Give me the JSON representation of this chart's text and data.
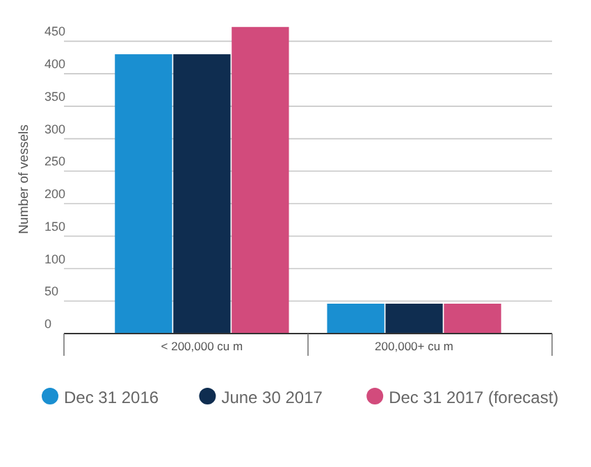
{
  "chart_data": {
    "type": "bar",
    "ylabel": "Number of vessels",
    "categories": [
      "< 200,000 cu m",
      "200,000+ cu m"
    ],
    "series": [
      {
        "name": "Dec 31 2016",
        "color": "#1a8fd1",
        "values": [
          430,
          46
        ]
      },
      {
        "name": "June 30 2017",
        "color": "#0f2d50",
        "values": [
          430,
          46
        ]
      },
      {
        "name": "Dec 31 2017 (forecast)",
        "color": "#d24b7c",
        "values": [
          472,
          46
        ]
      }
    ],
    "ylim": [
      0,
      475
    ],
    "yticks": [
      0,
      50,
      100,
      150,
      200,
      250,
      300,
      350,
      400,
      450
    ],
    "grid": "y",
    "legend": "bottom"
  }
}
